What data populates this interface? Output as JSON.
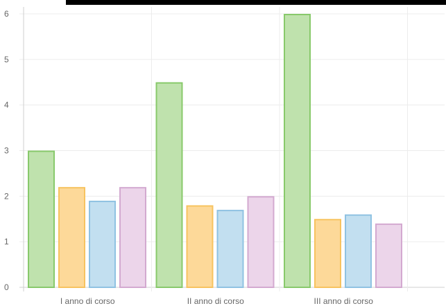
{
  "chart_data": {
    "type": "bar",
    "title": "",
    "xlabel": "",
    "ylabel": "",
    "categories": [
      "I anno di corso",
      "II anno di corso",
      "III anno di corso"
    ],
    "ylim": [
      0,
      6
    ],
    "yticks": [
      0,
      1,
      2,
      3,
      4,
      5,
      6
    ],
    "grid": true,
    "legend": "none",
    "series": [
      {
        "values": [
          3.0,
          4.5,
          6.0
        ],
        "fill": "#bfe2ad",
        "stroke": "#88c96b"
      },
      {
        "values": [
          2.2,
          1.8,
          1.5
        ],
        "fill": "#fdd999",
        "stroke": "#f7c35f"
      },
      {
        "values": [
          1.9,
          1.7,
          1.6
        ],
        "fill": "#c2dff0",
        "stroke": "#8fc2e2"
      },
      {
        "values": [
          2.2,
          2.0,
          1.4
        ],
        "fill": "#ecd5ea",
        "stroke": "#d3a9d0"
      }
    ]
  }
}
